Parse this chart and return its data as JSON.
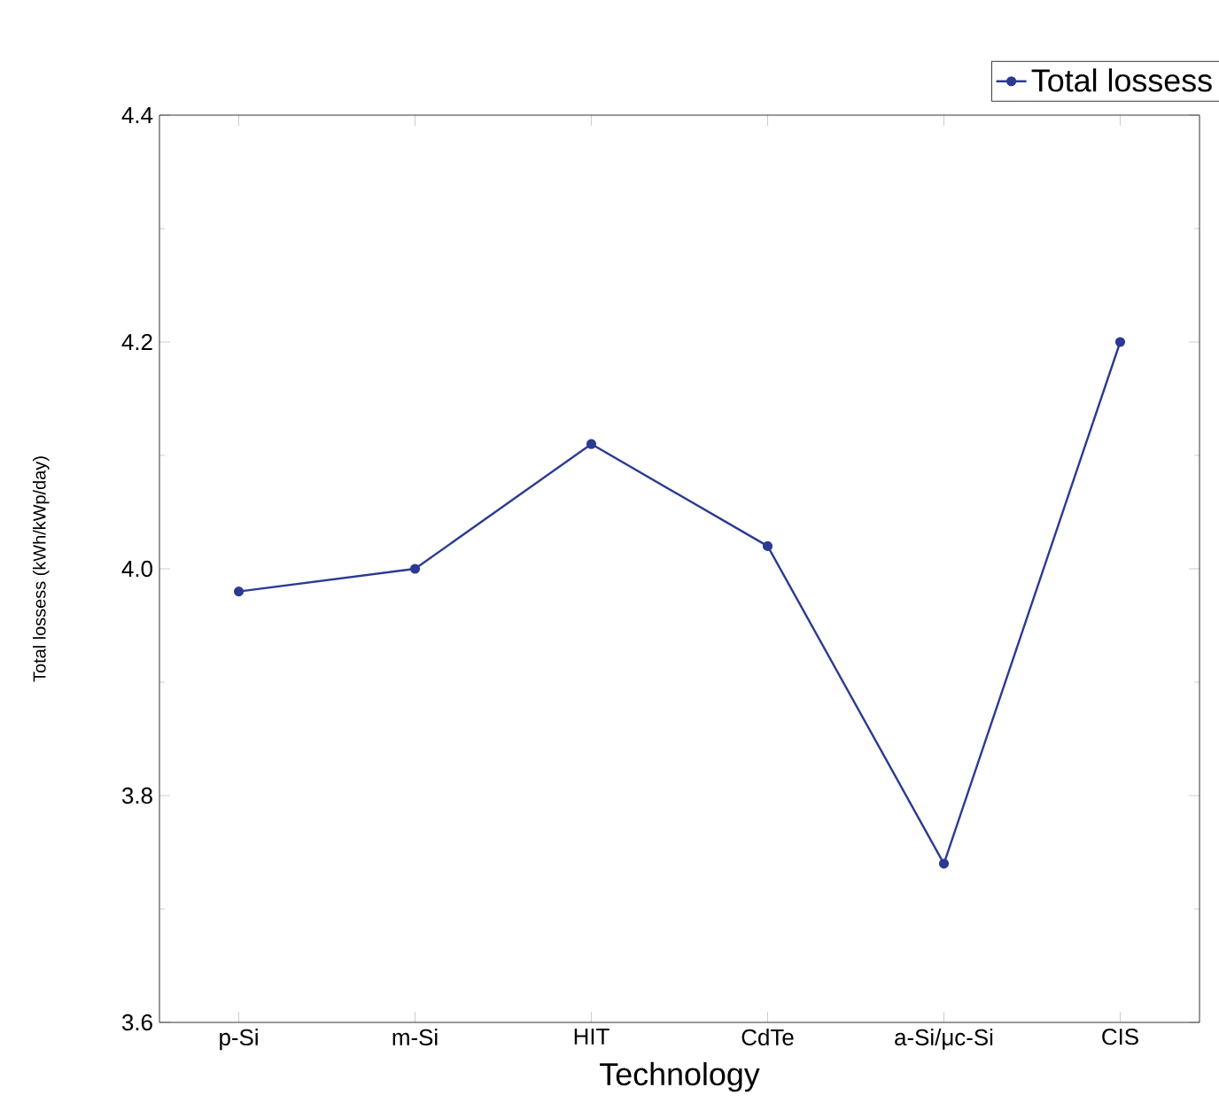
{
  "chart_data": {
    "type": "line",
    "xlabel": "Technology",
    "ylabel": "Total lossess (kWh/kWp/day)",
    "categories": [
      "p-Si",
      "m-Si",
      "HIT",
      "CdTe",
      "a-Si/μc-Si",
      "CIS"
    ],
    "series": [
      {
        "name": "Total lossess",
        "color": "#2b3a92",
        "values": [
          3.98,
          4.0,
          4.11,
          4.02,
          3.74,
          4.2
        ]
      }
    ],
    "ylim": [
      3.6,
      4.4
    ],
    "yticks": [
      3.6,
      3.8,
      {
        "value": 4.0,
        "label": "4.0"
      },
      4.2,
      4.4
    ],
    "legend": "top right",
    "marker": "circle",
    "line_style": "solid",
    "grid": false
  }
}
